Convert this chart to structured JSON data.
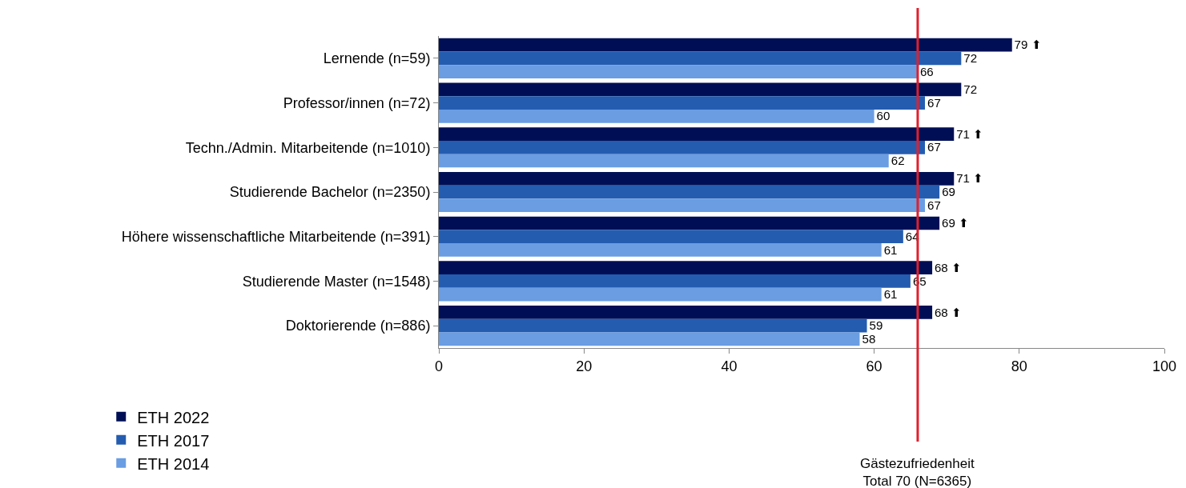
{
  "chart_data": {
    "type": "bar",
    "orientation": "horizontal",
    "categories": [
      "Lernende (n=59)",
      "Professor/innen (n=72)",
      "Techn./Admin. Mitarbeitende (n=1010)",
      "Studierende Bachelor (n=2350)",
      "Höhere wissenschaftliche Mitarbeitende (n=391)",
      "Studierende Master (n=1548)",
      "Doktorierende (n=886)"
    ],
    "series": [
      {
        "name": "ETH 2022",
        "color": "#000f55",
        "values": [
          79,
          72,
          71,
          71,
          69,
          68,
          68
        ],
        "value_labels": [
          "79 ⬆",
          "72",
          "71 ⬆",
          "71 ⬆",
          "69 ⬆",
          "68 ⬆",
          "68 ⬆"
        ]
      },
      {
        "name": "ETH 2017",
        "color": "#245cb0",
        "values": [
          72,
          67,
          67,
          69,
          64,
          65,
          59
        ],
        "value_labels": [
          "72",
          "67",
          "67",
          "69",
          "64",
          "65",
          "59"
        ]
      },
      {
        "name": "ETH 2014",
        "color": "#6a9de2",
        "values": [
          66,
          60,
          62,
          67,
          61,
          61,
          58
        ],
        "value_labels": [
          "66",
          "60",
          "62",
          "67",
          "61",
          "61",
          "58"
        ]
      }
    ],
    "xlim": [
      0,
      100
    ],
    "xticks": [
      0,
      20,
      40,
      60,
      80,
      100
    ],
    "legend": "bottom",
    "ref_lines": [
      {
        "axis": "x",
        "value": 66,
        "color": "#e0202e"
      }
    ],
    "annotations": [
      "Gästezufriedenheit\nTotal 70 (N=6365)"
    ]
  }
}
